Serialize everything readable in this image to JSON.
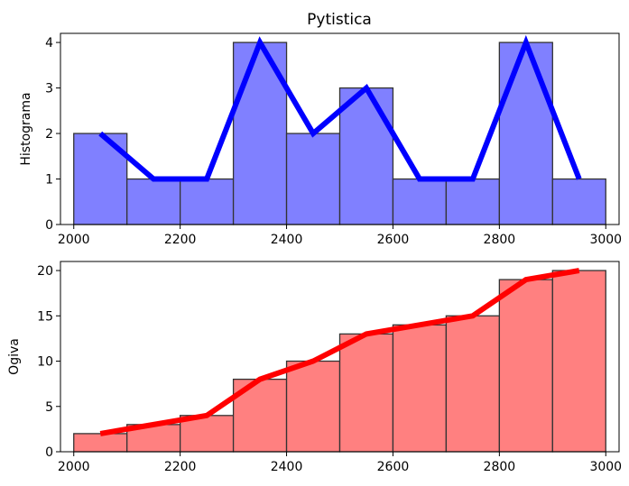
{
  "chart_data": [
    {
      "type": "bar",
      "title": "Pytistica",
      "xlabel": "",
      "ylabel": "Histograma",
      "bin_edges": [
        2000,
        2100,
        2200,
        2300,
        2400,
        2500,
        2600,
        2700,
        2800,
        2900,
        3000
      ],
      "values": [
        2,
        1,
        1,
        4,
        2,
        3,
        1,
        1,
        4,
        1
      ],
      "overlay": {
        "type": "line",
        "x": [
          2050,
          2150,
          2250,
          2350,
          2450,
          2550,
          2650,
          2750,
          2850,
          2950
        ],
        "y": [
          2,
          1,
          1,
          4,
          2,
          3,
          1,
          1,
          4,
          1
        ]
      },
      "xlim": [
        1975,
        3025
      ],
      "ylim": [
        0,
        4.2
      ],
      "xticks": [
        2000,
        2200,
        2400,
        2600,
        2800,
        3000
      ],
      "yticks": [
        0,
        1,
        2,
        3,
        4
      ],
      "bar_color": "#8080ff",
      "bar_edge_color": "#333333",
      "line_color": "#0000ff",
      "grid": false
    },
    {
      "type": "bar",
      "title": "",
      "xlabel": "",
      "ylabel": "Ogiva",
      "bin_edges": [
        2000,
        2100,
        2200,
        2300,
        2400,
        2500,
        2600,
        2700,
        2800,
        2900,
        3000
      ],
      "values": [
        2,
        3,
        4,
        8,
        10,
        13,
        14,
        15,
        19,
        20
      ],
      "overlay": {
        "type": "line",
        "x": [
          2050,
          2150,
          2250,
          2350,
          2450,
          2550,
          2650,
          2750,
          2850,
          2950
        ],
        "y": [
          2,
          3,
          4,
          8,
          10,
          13,
          14,
          15,
          19,
          20
        ]
      },
      "xlim": [
        1975,
        3025
      ],
      "ylim": [
        0,
        21
      ],
      "xticks": [
        2000,
        2200,
        2400,
        2600,
        2800,
        3000
      ],
      "yticks": [
        0,
        5,
        10,
        15,
        20
      ],
      "bar_color": "#ff8080",
      "bar_edge_color": "#333333",
      "line_color": "#ff0000",
      "grid": false
    }
  ]
}
